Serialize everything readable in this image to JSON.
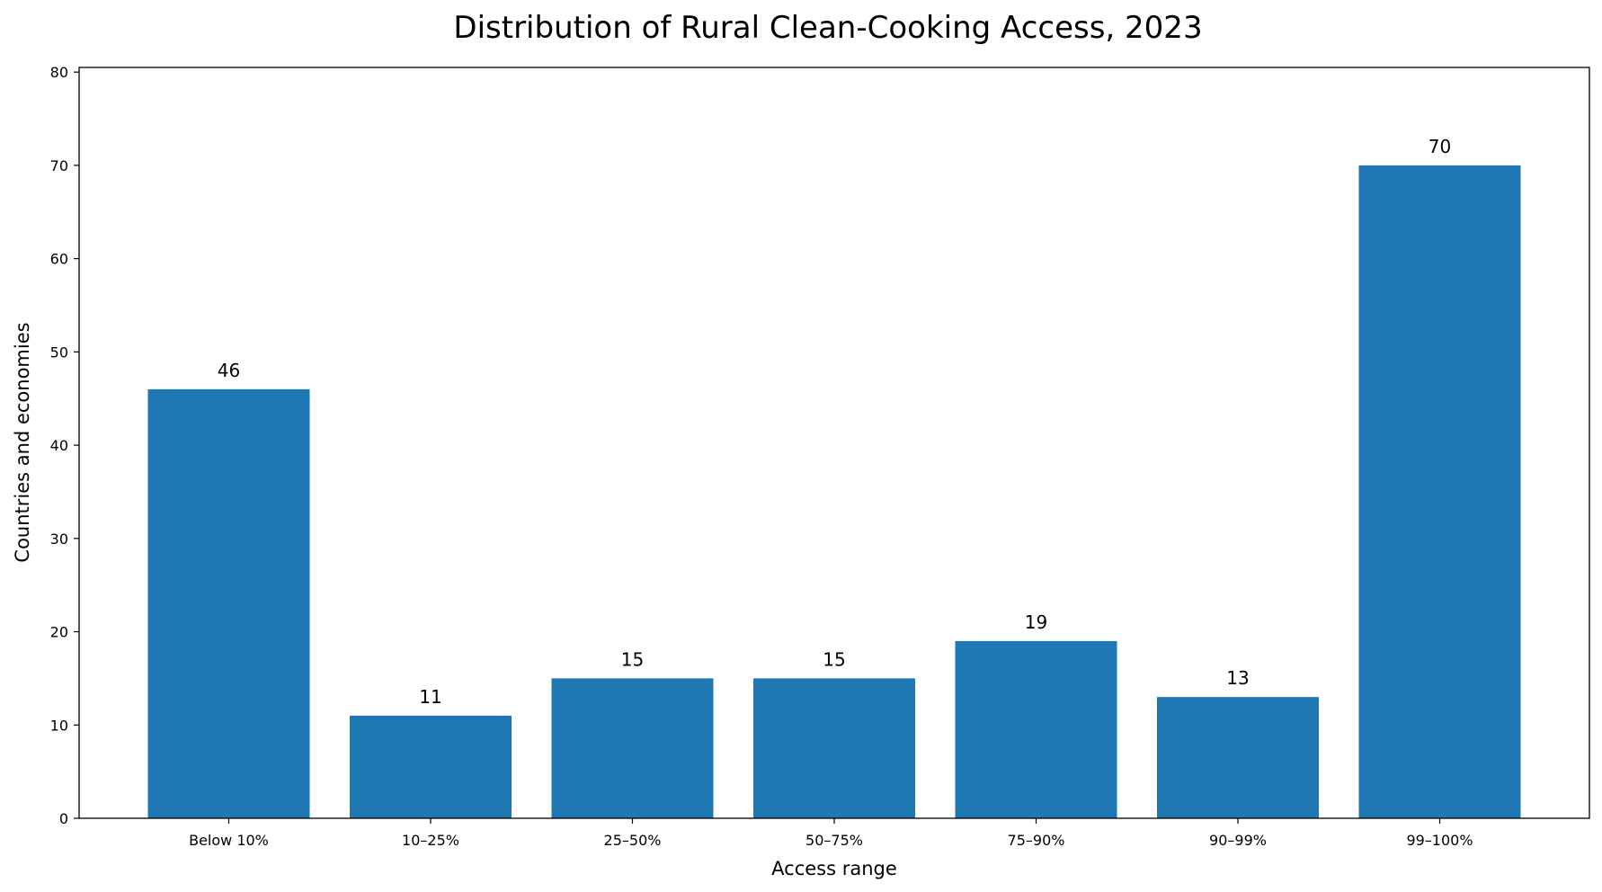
{
  "chart_data": {
    "type": "bar",
    "title": "Distribution of Rural Clean-Cooking Access, 2023",
    "xlabel": "Access range",
    "ylabel": "Countries and economies",
    "categories": [
      "Below 10%",
      "10–25%",
      "25–50%",
      "50–75%",
      "75–90%",
      "90–99%",
      "99–100%"
    ],
    "values": [
      46,
      11,
      15,
      15,
      19,
      13,
      70
    ],
    "ylim": [
      0,
      80.5
    ],
    "yticks": [
      0,
      10,
      20,
      30,
      40,
      50,
      60,
      70,
      80
    ],
    "bar_color": "#1f77b4",
    "grid": false,
    "legend": "none",
    "data_labels": true
  }
}
